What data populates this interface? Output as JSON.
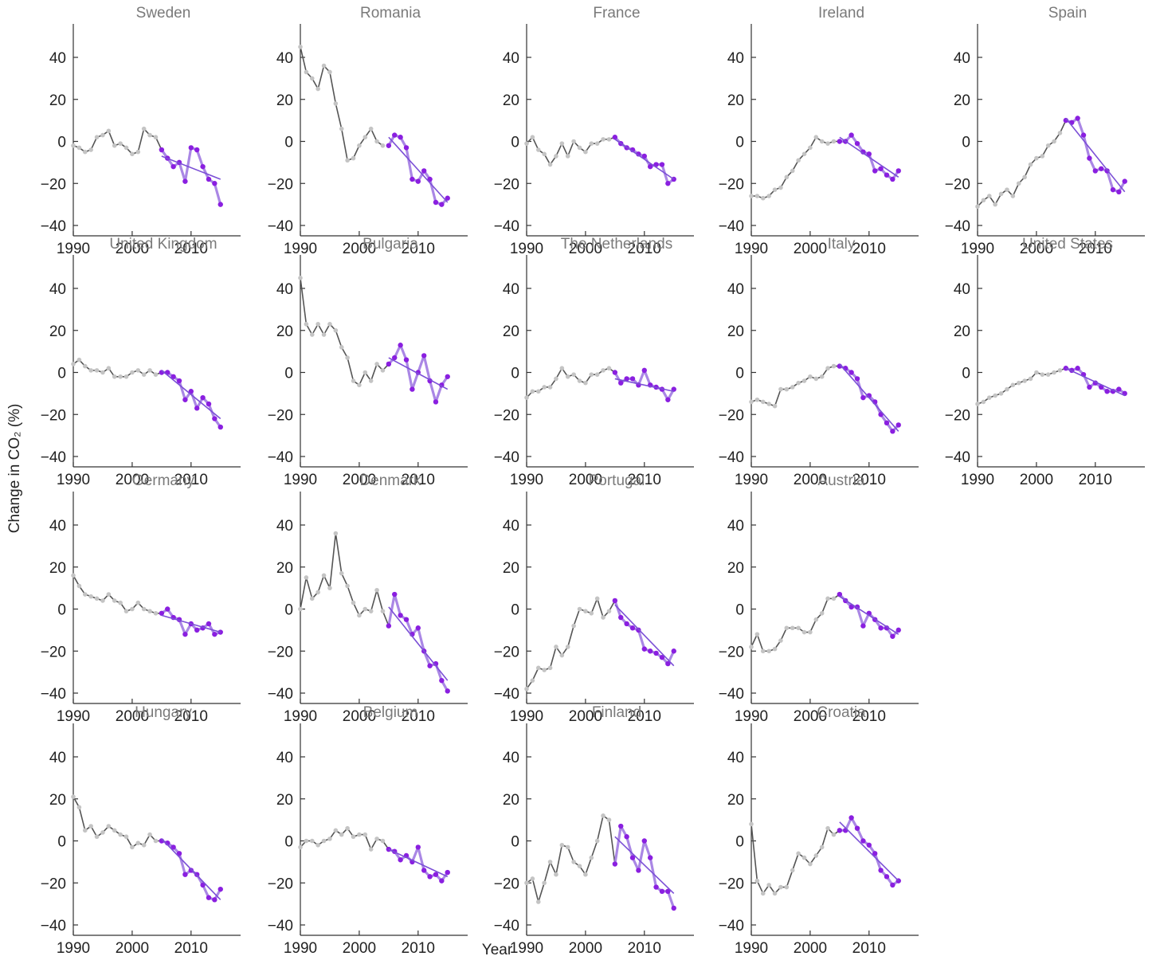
{
  "figure": {
    "xlabel": "Year",
    "ylabel": "Change in CO₂ (%)",
    "x_ticks": [
      "1990",
      "2000",
      "2010"
    ],
    "y_ticks": [
      "40",
      "20",
      "0",
      "−20",
      "−40"
    ]
  },
  "colors": {
    "historic_line": "#555555",
    "historic_points": "#c4c4c4",
    "recent_line": "#9b72e0",
    "recent_points": "#8a1fe0",
    "trend_line": "#7b4fd6"
  },
  "chart_data": [
    {
      "type": "line",
      "title": "Sweden",
      "x": [
        1990,
        2015
      ],
      "ylim": [
        -45,
        45
      ],
      "historic": [
        -2,
        -3,
        -5,
        -4,
        2,
        3,
        5,
        -2,
        -1,
        -3,
        -6,
        -5,
        6,
        3,
        2,
        -4
      ],
      "recent": [
        -4,
        -8,
        -12,
        -10,
        -19,
        -3,
        -4,
        -12,
        -18,
        -20,
        -30
      ],
      "trend": [
        -7,
        -18
      ]
    },
    {
      "type": "line",
      "title": "Romania",
      "x": [
        1990,
        2015
      ],
      "ylim": [
        -45,
        45
      ],
      "historic": [
        50,
        33,
        30,
        25,
        36,
        33,
        18,
        6,
        -9,
        -8,
        -2,
        2,
        6,
        0,
        -2
      ],
      "recent": [
        -2,
        3,
        2,
        -3,
        -18,
        -19,
        -14,
        -18,
        -29,
        -30,
        -27
      ],
      "trend": [
        2,
        -29
      ]
    },
    {
      "type": "line",
      "title": "France",
      "x": [
        1990,
        2015
      ],
      "ylim": [
        -45,
        45
      ],
      "historic": [
        -1,
        2,
        -4,
        -6,
        -11,
        -7,
        -1,
        -7,
        0,
        -3,
        -5,
        -1,
        -1,
        1,
        1,
        2
      ],
      "recent": [
        2,
        -1,
        -3,
        -4,
        -6,
        -7,
        -12,
        -11,
        -11,
        -20,
        -18
      ],
      "trend": [
        1,
        -18
      ]
    },
    {
      "type": "line",
      "title": "Ireland",
      "x": [
        1990,
        2015
      ],
      "ylim": [
        -45,
        45
      ],
      "historic": [
        -26,
        -26,
        -27,
        -26,
        -23,
        -22,
        -17,
        -14,
        -9,
        -6,
        -3,
        2,
        0,
        -1,
        0,
        0
      ],
      "recent": [
        0,
        0,
        3,
        -1,
        -5,
        -6,
        -14,
        -13,
        -16,
        -18,
        -14
      ],
      "trend": [
        2,
        -17
      ]
    },
    {
      "type": "line",
      "title": "Spain",
      "x": [
        1990,
        2015
      ],
      "ylim": [
        -45,
        45
      ],
      "historic": [
        -31,
        -28,
        -26,
        -30,
        -25,
        -23,
        -26,
        -20,
        -17,
        -11,
        -8,
        -7,
        -2,
        0,
        4,
        10
      ],
      "recent": [
        10,
        9,
        11,
        3,
        -8,
        -14,
        -13,
        -14,
        -23,
        -24,
        -19
      ],
      "trend": [
        11,
        -24
      ]
    },
    {
      "type": "line",
      "title": "United Kingdom",
      "x": [
        1990,
        2015
      ],
      "ylim": [
        -45,
        45
      ],
      "historic": [
        4,
        6,
        3,
        1,
        1,
        0,
        2,
        -2,
        -2,
        -2,
        0,
        1,
        -1,
        1,
        -1,
        0
      ],
      "recent": [
        0,
        0,
        -2,
        -4,
        -13,
        -9,
        -17,
        -12,
        -15,
        -22,
        -26
      ],
      "trend": [
        1,
        -22
      ]
    },
    {
      "type": "line",
      "title": "Bulgaria",
      "x": [
        1990,
        2015
      ],
      "ylim": [
        -45,
        45
      ],
      "historic": [
        48,
        23,
        18,
        23,
        18,
        23,
        20,
        12,
        7,
        -4,
        -6,
        0,
        -4,
        4,
        1,
        4
      ],
      "recent": [
        4,
        7,
        13,
        6,
        -8,
        0,
        8,
        -4,
        -14,
        -6,
        -2
      ],
      "trend": [
        7,
        -8
      ]
    },
    {
      "type": "line",
      "title": "The Netherlands",
      "x": [
        1990,
        2015
      ],
      "ylim": [
        -45,
        45
      ],
      "historic": [
        -12,
        -9,
        -9,
        -7,
        -7,
        -3,
        2,
        -2,
        -1,
        -4,
        -5,
        -1,
        -1,
        1,
        2,
        0
      ],
      "recent": [
        0,
        -5,
        -3,
        -3,
        -6,
        1,
        -6,
        -7,
        -8,
        -13,
        -8
      ],
      "trend": [
        -3,
        -9
      ]
    },
    {
      "type": "line",
      "title": "Italy",
      "x": [
        1990,
        2015
      ],
      "ylim": [
        -45,
        45
      ],
      "historic": [
        -14,
        -13,
        -14,
        -15,
        -16,
        -8,
        -8,
        -7,
        -5,
        -4,
        -2,
        -3,
        -2,
        2,
        3,
        3
      ],
      "recent": [
        3,
        2,
        0,
        -3,
        -12,
        -11,
        -14,
        -20,
        -24,
        -28,
        -25
      ],
      "trend": [
        4,
        -28
      ]
    },
    {
      "type": "line",
      "title": "United States",
      "x": [
        1990,
        2015
      ],
      "ylim": [
        -45,
        45
      ],
      "historic": [
        -15,
        -14,
        -12,
        -11,
        -10,
        -8,
        -6,
        -5,
        -4,
        -3,
        0,
        -1,
        -1,
        0,
        1,
        2
      ],
      "recent": [
        2,
        1,
        2,
        -1,
        -7,
        -5,
        -7,
        -9,
        -9,
        -8,
        -10
      ],
      "trend": [
        2,
        -11
      ]
    },
    {
      "type": "line",
      "title": "Germany",
      "x": [
        1990,
        2015
      ],
      "ylim": [
        -45,
        45
      ],
      "historic": [
        16,
        11,
        7,
        6,
        5,
        4,
        7,
        4,
        3,
        -1,
        0,
        3,
        0,
        -1,
        -2,
        -2
      ],
      "recent": [
        -2,
        0,
        -4,
        -5,
        -12,
        -7,
        -10,
        -9,
        -7,
        -12,
        -11
      ],
      "trend": [
        -3,
        -11
      ]
    },
    {
      "type": "line",
      "title": "Denmark",
      "x": [
        1990,
        2015
      ],
      "ylim": [
        -45,
        45
      ],
      "historic": [
        0,
        15,
        5,
        8,
        16,
        10,
        36,
        17,
        11,
        3,
        -3,
        0,
        -1,
        9,
        -1,
        -8
      ],
      "recent": [
        -8,
        7,
        -3,
        -5,
        -12,
        -9,
        -20,
        -27,
        -26,
        -34,
        -39
      ],
      "trend": [
        1,
        -34
      ]
    },
    {
      "type": "line",
      "title": "Portugal",
      "x": [
        1990,
        2015
      ],
      "ylim": [
        -45,
        45
      ],
      "historic": [
        -38,
        -34,
        -28,
        -29,
        -28,
        -18,
        -22,
        -18,
        -8,
        0,
        -1,
        -2,
        5,
        -4,
        -1,
        4
      ],
      "recent": [
        4,
        -4,
        -7,
        -9,
        -10,
        -19,
        -20,
        -21,
        -23,
        -26,
        -20
      ],
      "trend": [
        2,
        -27
      ]
    },
    {
      "type": "line",
      "title": "Austria",
      "x": [
        1990,
        2015
      ],
      "ylim": [
        -45,
        45
      ],
      "historic": [
        -18,
        -12,
        -20,
        -20,
        -19,
        -15,
        -9,
        -9,
        -9,
        -11,
        -11,
        -5,
        -2,
        5,
        5,
        7
      ],
      "recent": [
        7,
        4,
        1,
        1,
        -8,
        -2,
        -5,
        -9,
        -9,
        -13,
        -10
      ],
      "trend": [
        6,
        -12
      ]
    },
    {
      "type": "line",
      "title": "Hungary",
      "x": [
        1990,
        2015
      ],
      "ylim": [
        -45,
        45
      ],
      "historic": [
        21,
        16,
        5,
        7,
        2,
        4,
        7,
        5,
        3,
        2,
        -3,
        -1,
        -2,
        3,
        0,
        0
      ],
      "recent": [
        0,
        -1,
        -3,
        -6,
        -16,
        -14,
        -16,
        -21,
        -27,
        -28,
        -23
      ],
      "trend": [
        1,
        -28
      ]
    },
    {
      "type": "line",
      "title": "Belgium",
      "x": [
        1990,
        2015
      ],
      "ylim": [
        -45,
        45
      ],
      "historic": [
        -3,
        0,
        0,
        -2,
        0,
        1,
        5,
        3,
        6,
        2,
        3,
        3,
        -4,
        1,
        0,
        -4
      ],
      "recent": [
        -4,
        -5,
        -9,
        -7,
        -10,
        -3,
        -14,
        -17,
        -16,
        -19,
        -15
      ],
      "trend": [
        -4,
        -17
      ]
    },
    {
      "type": "line",
      "title": "Finland",
      "x": [
        1990,
        2015
      ],
      "ylim": [
        -45,
        45
      ],
      "historic": [
        -20,
        -18,
        -29,
        -20,
        -10,
        -16,
        -2,
        -3,
        -10,
        -12,
        -16,
        -8,
        0,
        12,
        10,
        -11
      ],
      "recent": [
        -11,
        7,
        2,
        -8,
        -14,
        0,
        -8,
        -22,
        -24,
        -24,
        -32
      ],
      "trend": [
        2,
        -25
      ]
    },
    {
      "type": "line",
      "title": "Croatia",
      "x": [
        1990,
        2015
      ],
      "ylim": [
        -45,
        45
      ],
      "historic": [
        8,
        -19,
        -25,
        -21,
        -25,
        -22,
        -22,
        -14,
        -6,
        -8,
        -11,
        -7,
        -3,
        6,
        3,
        5
      ],
      "recent": [
        5,
        5,
        11,
        6,
        0,
        -2,
        -6,
        -14,
        -17,
        -21,
        -19
      ],
      "trend": [
        9,
        -19
      ]
    }
  ]
}
